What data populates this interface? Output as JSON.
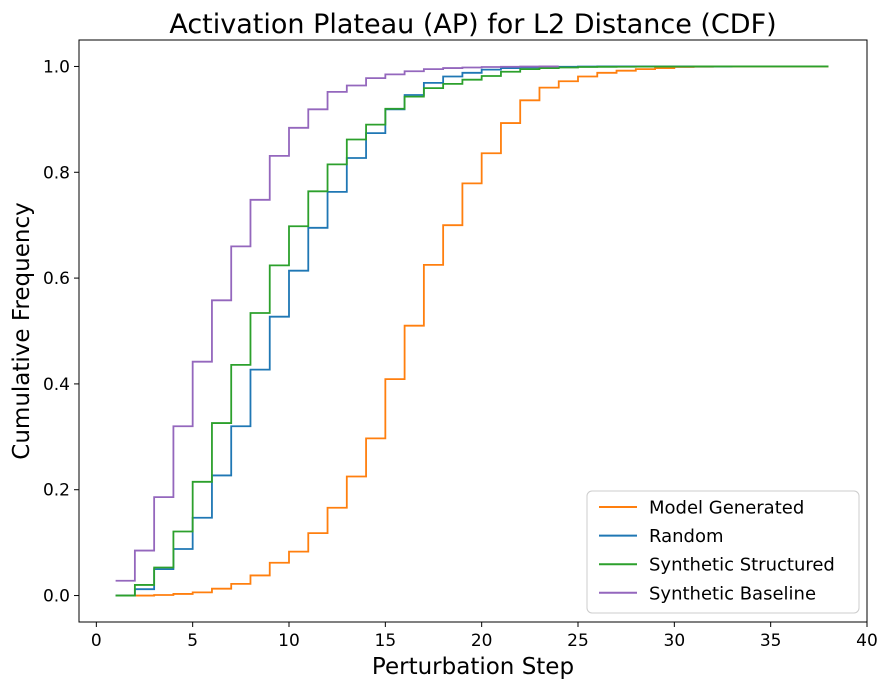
{
  "chart_data": {
    "type": "line",
    "step": true,
    "title": "Activation Plateau (AP) for L2 Distance (CDF)",
    "xlabel": "Perturbation Step",
    "ylabel": "Cumulative Frequency",
    "xlim": [
      -0.9,
      40
    ],
    "ylim": [
      -0.05,
      1.05
    ],
    "xticks": [
      0,
      5,
      10,
      15,
      20,
      25,
      30,
      35,
      40
    ],
    "yticks": [
      0.0,
      0.2,
      0.4,
      0.6,
      0.8,
      1.0
    ],
    "xtick_labels": [
      "0",
      "5",
      "10",
      "15",
      "20",
      "25",
      "30",
      "35",
      "40"
    ],
    "ytick_labels": [
      "0.0",
      "0.2",
      "0.4",
      "0.6",
      "0.8",
      "1.0"
    ],
    "legend_position": "lower-right",
    "grid": false,
    "series": [
      {
        "name": "Model Generated",
        "color": "#ff7f0e",
        "x": [
          1,
          2,
          3,
          4,
          5,
          6,
          7,
          8,
          9,
          10,
          11,
          12,
          13,
          14,
          15,
          16,
          17,
          18,
          19,
          20,
          21,
          22,
          23,
          24,
          25,
          26,
          27,
          28,
          29,
          30,
          31,
          32,
          33,
          34,
          35,
          36,
          37,
          38
        ],
        "y": [
          0.0,
          0.0,
          0.001,
          0.003,
          0.006,
          0.013,
          0.022,
          0.038,
          0.062,
          0.083,
          0.118,
          0.166,
          0.225,
          0.297,
          0.409,
          0.51,
          0.625,
          0.7,
          0.779,
          0.836,
          0.893,
          0.936,
          0.96,
          0.972,
          0.981,
          0.988,
          0.992,
          0.995,
          0.997,
          0.999,
          0.9995,
          0.9998,
          0.9999,
          1.0,
          1.0,
          1.0,
          1.0,
          1.0
        ]
      },
      {
        "name": "Random",
        "color": "#1f77b4",
        "x": [
          1,
          2,
          3,
          4,
          5,
          6,
          7,
          8,
          9,
          10,
          11,
          12,
          13,
          14,
          15,
          16,
          17,
          18,
          19,
          20,
          21,
          22,
          23,
          24,
          25,
          26,
          27,
          28,
          29,
          30,
          31,
          32,
          33
        ],
        "y": [
          0.0,
          0.012,
          0.05,
          0.088,
          0.147,
          0.227,
          0.32,
          0.427,
          0.527,
          0.614,
          0.695,
          0.763,
          0.827,
          0.874,
          0.919,
          0.946,
          0.969,
          0.981,
          0.988,
          0.994,
          0.997,
          0.998,
          0.999,
          0.9995,
          0.9998,
          1.0,
          1.0,
          1.0,
          1.0,
          1.0,
          1.0,
          1.0,
          1.0
        ]
      },
      {
        "name": "Synthetic Structured",
        "color": "#2ca02c",
        "x": [
          1,
          2,
          3,
          4,
          5,
          6,
          7,
          8,
          9,
          10,
          11,
          12,
          13,
          14,
          15,
          16,
          17,
          18,
          19,
          20,
          21,
          22,
          23,
          24,
          25,
          26,
          27,
          28,
          29,
          30,
          31,
          32,
          33,
          34,
          35,
          36,
          37,
          38
        ],
        "y": [
          0.0,
          0.02,
          0.053,
          0.121,
          0.215,
          0.326,
          0.436,
          0.534,
          0.624,
          0.698,
          0.764,
          0.815,
          0.862,
          0.89,
          0.92,
          0.943,
          0.959,
          0.967,
          0.975,
          0.982,
          0.99,
          0.995,
          0.997,
          0.998,
          0.999,
          0.9993,
          0.9995,
          0.9997,
          0.9998,
          0.9999,
          1.0,
          1.0,
          1.0,
          1.0,
          1.0,
          1.0,
          1.0,
          1.0
        ]
      },
      {
        "name": "Synthetic Baseline",
        "color": "#9467bd",
        "x": [
          1,
          2,
          3,
          4,
          5,
          6,
          7,
          8,
          9,
          10,
          11,
          12,
          13,
          14,
          15,
          16,
          17,
          18,
          19,
          20,
          21,
          22,
          23,
          24
        ],
        "y": [
          0.028,
          0.085,
          0.186,
          0.32,
          0.442,
          0.558,
          0.66,
          0.748,
          0.831,
          0.884,
          0.919,
          0.952,
          0.964,
          0.978,
          0.985,
          0.991,
          0.995,
          0.997,
          0.998,
          0.999,
          0.9995,
          0.9998,
          1.0,
          1.0
        ]
      }
    ]
  }
}
